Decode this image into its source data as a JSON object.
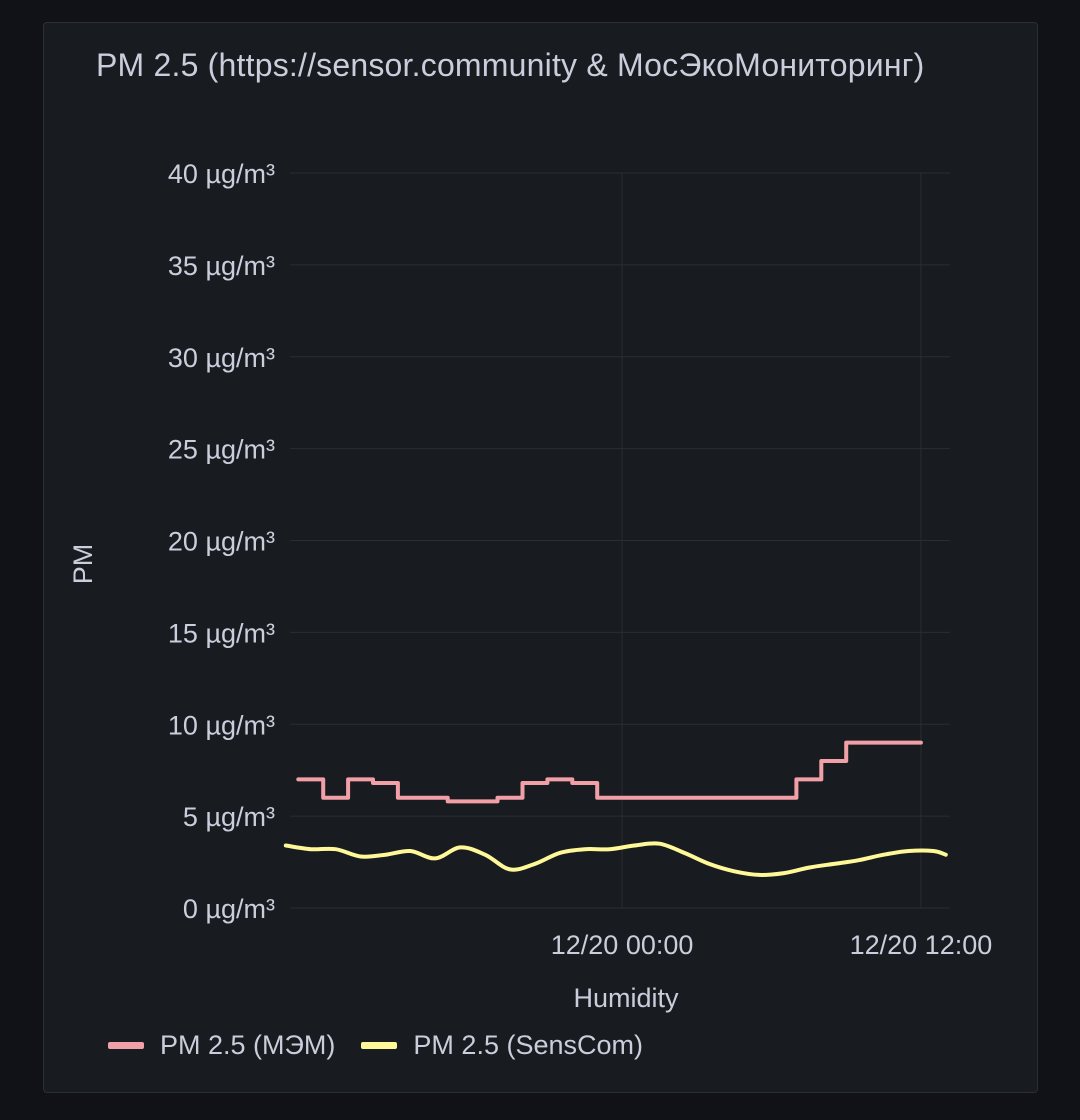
{
  "panel": {
    "title": "PM 2.5 (https://sensor.community & МосЭкоМониторинг)"
  },
  "chart_data": {
    "type": "line",
    "title": "PM 2.5 (https://sensor.community & МосЭкоМониторинг)",
    "xlabel": "Humidity",
    "ylabel": "PM",
    "y_unit": "µg/m³",
    "ylim": [
      0,
      40
    ],
    "y_ticks": [
      0,
      5,
      10,
      15,
      20,
      25,
      30,
      35,
      40
    ],
    "y_tick_labels": [
      "0 µg/m³",
      "5 µg/m³",
      "10 µg/m³",
      "15 µg/m³",
      "20 µg/m³",
      "25 µg/m³",
      "30 µg/m³",
      "35 µg/m³",
      "40 µg/m³"
    ],
    "xlim": [
      "12/19 10:40",
      "12/20 13:10"
    ],
    "x_ticks": [
      "12/20 00:00",
      "12/20 12:00"
    ],
    "grid": true,
    "legend_position": "bottom-left",
    "series": [
      {
        "name": "PM 2.5 (МЭМ)",
        "color": "#f2a0a8",
        "step": true,
        "x": [
          "12/19 11:00",
          "12/19 12:00",
          "12/19 13:00",
          "12/19 14:00",
          "12/19 15:00",
          "12/19 16:00",
          "12/19 17:00",
          "12/19 18:00",
          "12/19 19:00",
          "12/19 20:00",
          "12/19 21:00",
          "12/19 22:00",
          "12/19 23:00",
          "12/20 00:00",
          "12/20 01:00",
          "12/20 02:00",
          "12/20 03:00",
          "12/20 04:00",
          "12/20 05:00",
          "12/20 06:00",
          "12/20 07:00",
          "12/20 08:00",
          "12/20 09:00",
          "12/20 10:00",
          "12/20 11:00"
        ],
        "y": [
          7,
          6,
          7,
          6.8,
          6,
          6,
          5.8,
          5.8,
          6,
          6.8,
          7,
          6.8,
          6,
          6,
          6,
          6,
          6,
          6,
          6,
          6,
          7,
          8,
          9,
          9,
          9
        ]
      },
      {
        "name": "PM 2.5 (SensCom)",
        "color": "#fff899",
        "step": false,
        "x": [
          "12/19 10:30",
          "12/19 11:30",
          "12/19 12:30",
          "12/19 13:30",
          "12/19 14:30",
          "12/19 15:30",
          "12/19 16:30",
          "12/19 17:30",
          "12/19 18:30",
          "12/19 19:30",
          "12/19 20:30",
          "12/19 21:30",
          "12/19 22:30",
          "12/19 23:30",
          "12/20 00:30",
          "12/20 01:30",
          "12/20 02:30",
          "12/20 03:30",
          "12/20 04:30",
          "12/20 05:30",
          "12/20 06:30",
          "12/20 07:30",
          "12/20 08:30",
          "12/20 09:30",
          "12/20 10:30",
          "12/20 11:30",
          "12/20 12:30",
          "12/20 13:00"
        ],
        "y": [
          3.4,
          3.2,
          3.2,
          2.8,
          2.9,
          3.1,
          2.7,
          3.3,
          2.9,
          2.1,
          2.4,
          3.0,
          3.2,
          3.2,
          3.4,
          3.5,
          3.0,
          2.4,
          2.0,
          1.8,
          1.9,
          2.2,
          2.4,
          2.6,
          2.9,
          3.1,
          3.1,
          2.9
        ]
      }
    ]
  }
}
